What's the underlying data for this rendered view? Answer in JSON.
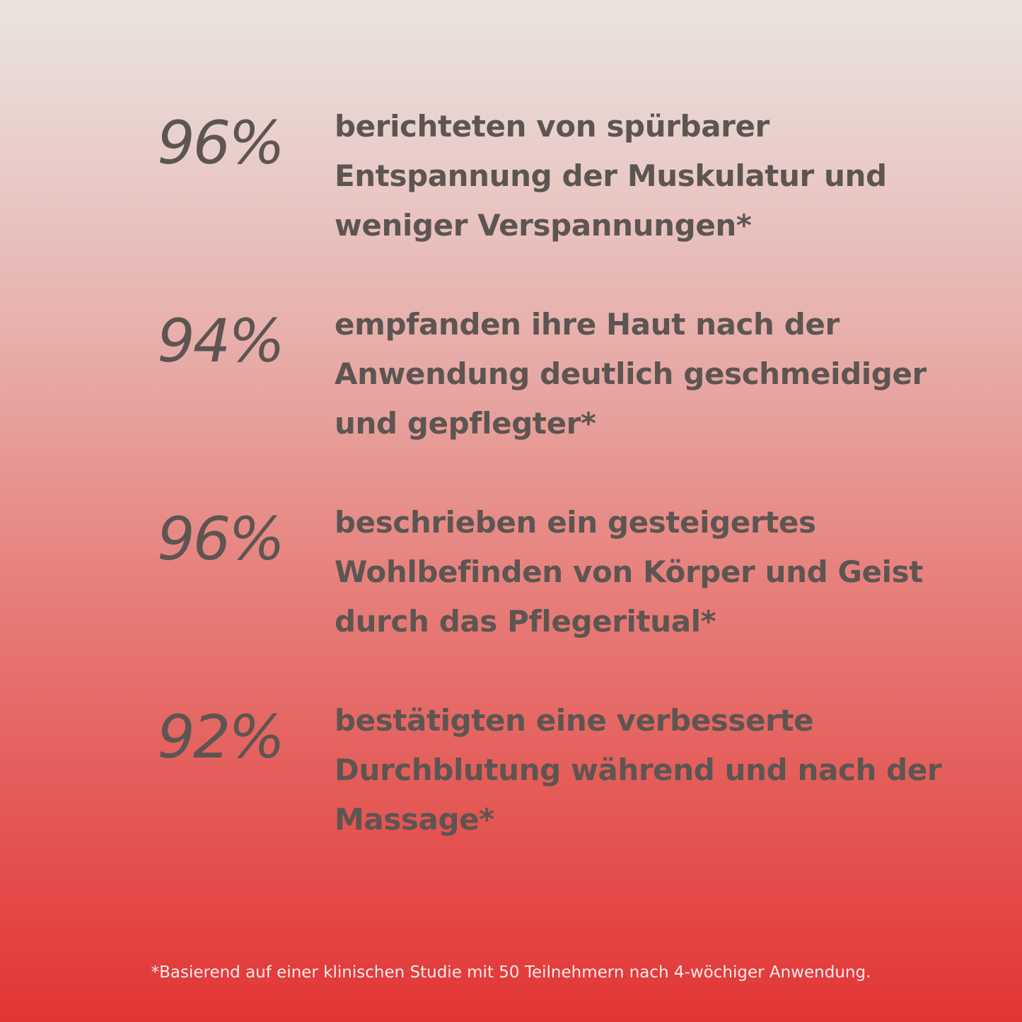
{
  "stats": [
    {
      "percent": "96%",
      "text": "berichteten von spürbarer\nEntspannung der Muskulatur und\nweniger Verspannungen*"
    },
    {
      "percent": "94%",
      "text": "empfanden ihre Haut nach der\nAnwendung deutlich geschmeidiger\nund gepflegter*"
    },
    {
      "percent": "96%",
      "text": " beschrieben ein gesteigertes\nWohlbefinden von Körper und Geist\ndurch das Pflegeritual*"
    },
    {
      "percent": "92%",
      "text": "bestätigten eine verbesserte\nDurchblutung während und nach der\nMassage*"
    }
  ],
  "footnote": "*Basierend auf einer klinischen Studie mit 50 Teilnehmern nach 4-wöchiger Anwendung.",
  "colors": {
    "text": "#5d5551",
    "footnote": "#fbecea",
    "gradient_top": "#e9e4df",
    "gradient_bottom": "#e23535"
  }
}
